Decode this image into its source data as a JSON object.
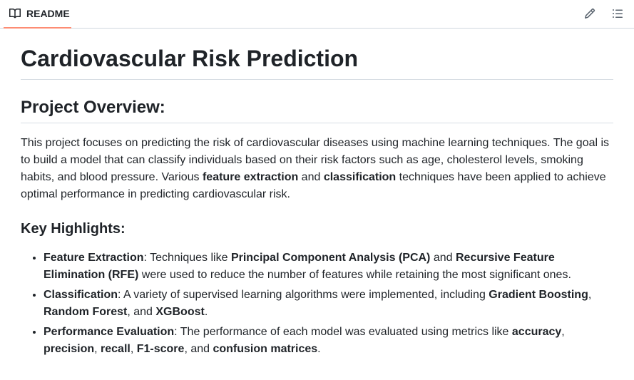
{
  "tabbar": {
    "tab_label": "README",
    "tab_icon": "book-icon",
    "edit_icon": "pencil-icon",
    "outline_icon": "list-icon"
  },
  "readme": {
    "title": "Cardiovascular Risk Prediction",
    "overview_heading": "Project Overview:",
    "overview": {
      "t1": "This project focuses on predicting the risk of cardiovascular diseases using machine learning techniques. The goal is to build a model that can classify individuals based on their risk factors such as age, cholesterol levels, smoking habits, and blood pressure. Various ",
      "b1": "feature extraction",
      "t2": " and ",
      "b2": "classification",
      "t3": " techniques have been applied to achieve optimal performance in predicting cardiovascular risk."
    },
    "highlights_heading": "Key Highlights:",
    "highlights": [
      {
        "b1": "Feature Extraction",
        "t1": ": Techniques like ",
        "b2": "Principal Component Analysis (PCA)",
        "t2": " and ",
        "b3": "Recursive Feature Elimination (RFE)",
        "t3": " were used to reduce the number of features while retaining the most significant ones."
      },
      {
        "b1": "Classification",
        "t1": ": A variety of supervised learning algorithms were implemented, including ",
        "b2": "Gradient Boosting",
        "t2": ", ",
        "b3": "Random Forest",
        "t3": ", and ",
        "b4": "XGBoost",
        "t4": "."
      },
      {
        "b1": "Performance Evaluation",
        "t1": ": The performance of each model was evaluated using metrics like ",
        "b2": "accuracy",
        "t2": ", ",
        "b3": "precision",
        "t3": ", ",
        "b4": "recall",
        "t4": ", ",
        "b5": "F1-score",
        "t5": ", and ",
        "b6": "confusion matrices",
        "t6": "."
      }
    ]
  }
}
